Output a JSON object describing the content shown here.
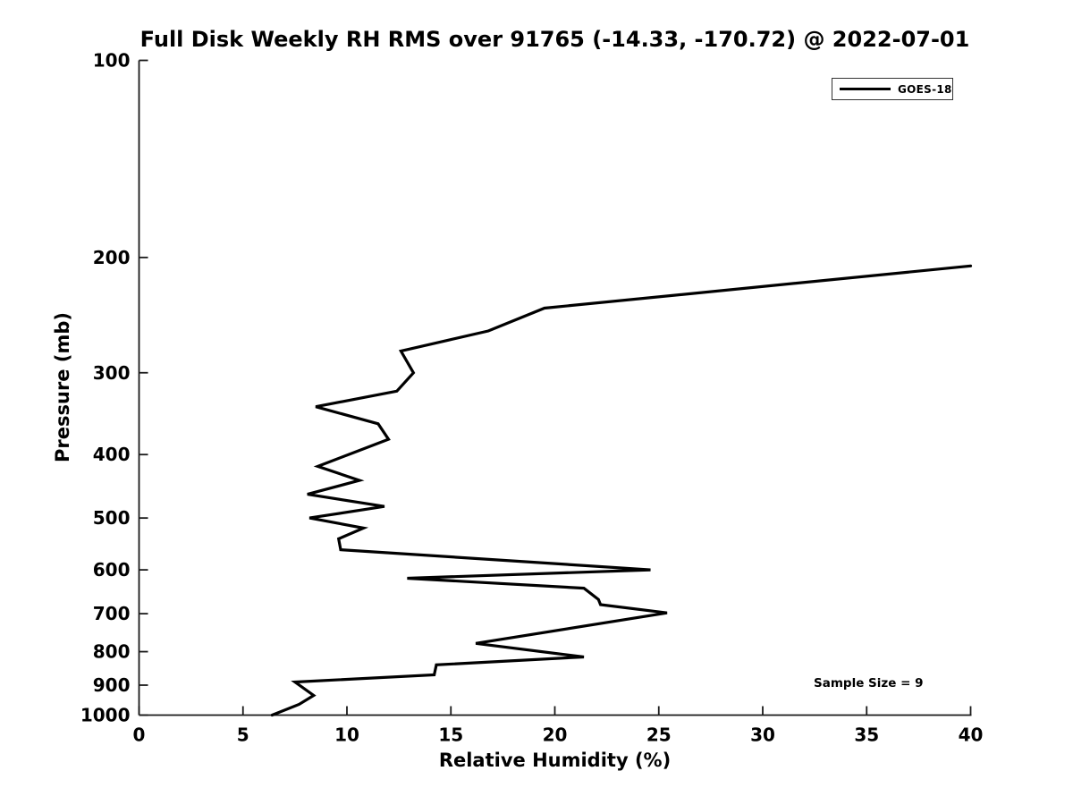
{
  "figure": {
    "title": "Full Disk Weekly RH RMS over 91765 (-14.33, -170.72) @ 2022-07-01",
    "xlabel": "Relative Humidity (%)",
    "ylabel": "Pressure (mb)",
    "annotation": "Sample Size = 9",
    "legend": {
      "entries": [
        {
          "label": "GOES-18",
          "color": "#000000"
        }
      ]
    }
  },
  "chart_data": {
    "type": "line",
    "title": "Full Disk Weekly RH RMS over 91765 (-14.33, -170.72) @ 2022-07-01",
    "xlabel": "Relative Humidity (%)",
    "ylabel": "Pressure (mb)",
    "xlim": [
      0,
      40
    ],
    "ylim": [
      1000,
      100
    ],
    "yscale": "log",
    "y_axis_inverted": true,
    "grid": false,
    "x_ticks": [
      0,
      5,
      10,
      15,
      20,
      25,
      30,
      35,
      40
    ],
    "y_ticks": [
      100,
      200,
      300,
      400,
      500,
      600,
      700,
      800,
      900,
      1000
    ],
    "legend_position": "upper right",
    "annotation": "Sample Size = 9",
    "line_color": "#000000",
    "series": [
      {
        "name": "GOES-18",
        "color": "#000000",
        "x_name": "relative_humidity_pct",
        "y_name": "pressure_mb",
        "points": [
          [
            40.0,
            206
          ],
          [
            19.5,
            239
          ],
          [
            16.8,
            259
          ],
          [
            12.6,
            278
          ],
          [
            13.2,
            300
          ],
          [
            12.4,
            320
          ],
          [
            8.5,
            338
          ],
          [
            11.5,
            359
          ],
          [
            12.0,
            379
          ],
          [
            8.6,
            417
          ],
          [
            10.6,
            438
          ],
          [
            8.1,
            460
          ],
          [
            11.8,
            480
          ],
          [
            8.2,
            500
          ],
          [
            10.8,
            518
          ],
          [
            9.6,
            538
          ],
          [
            9.7,
            559
          ],
          [
            24.6,
            600
          ],
          [
            12.9,
            618
          ],
          [
            21.4,
            640
          ],
          [
            22.1,
            666
          ],
          [
            22.2,
            678
          ],
          [
            25.4,
            698
          ],
          [
            16.2,
            777
          ],
          [
            21.4,
            815
          ],
          [
            14.3,
            838
          ],
          [
            14.2,
            868
          ],
          [
            7.5,
            890
          ],
          [
            8.4,
            933
          ],
          [
            7.7,
            963
          ],
          [
            6.4,
            1000
          ]
        ]
      }
    ]
  }
}
